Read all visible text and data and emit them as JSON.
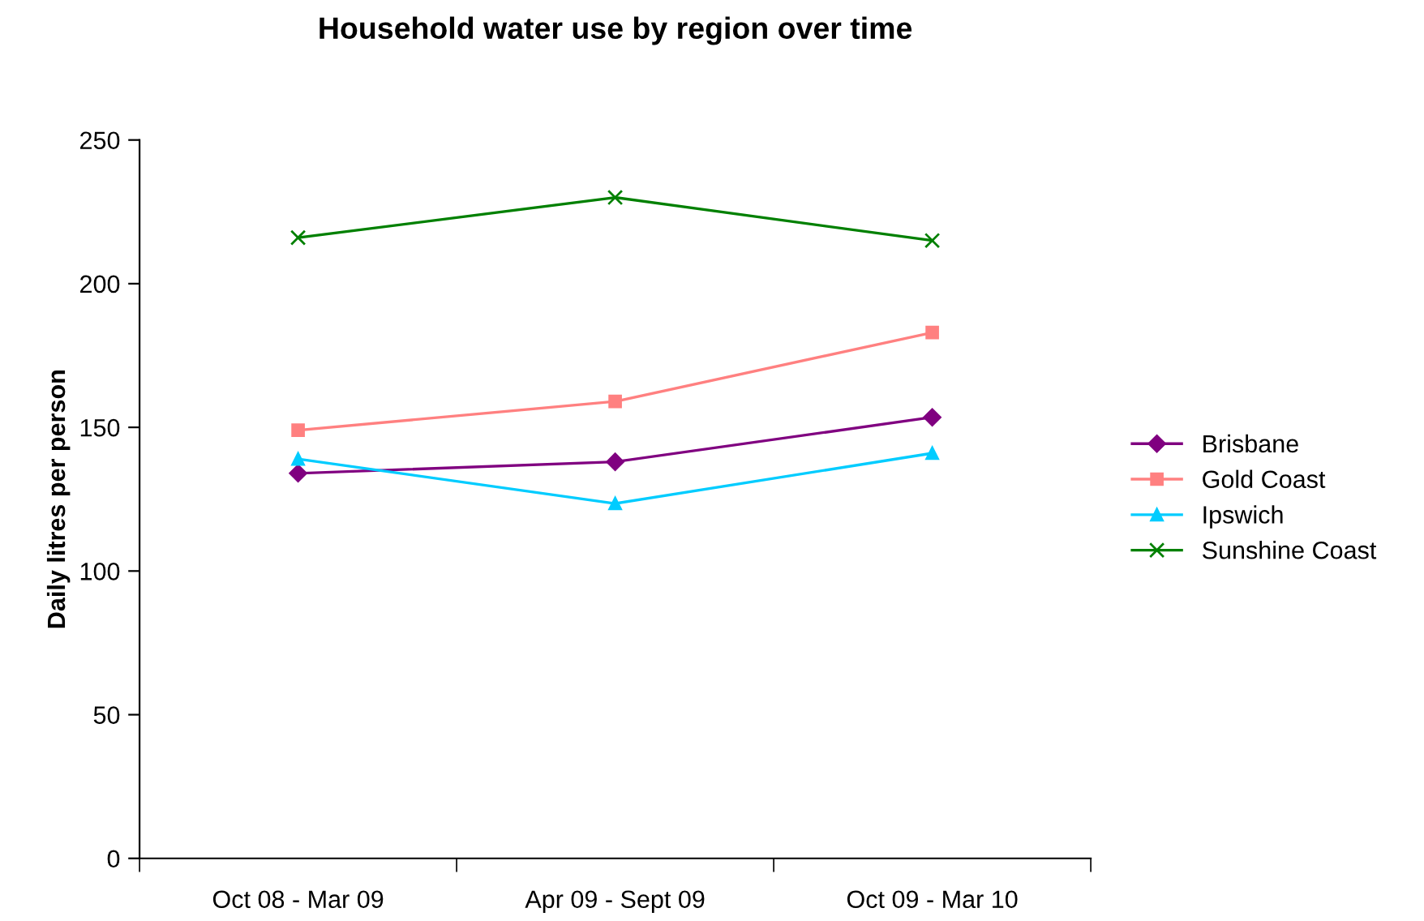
{
  "chart_data": {
    "type": "line",
    "title": "Household water use by region over time",
    "ylabel": "Daily litres per person",
    "categories": [
      "Oct 08 - Mar 09",
      "Apr 09 - Sept 09",
      "Oct 09 - Mar 10"
    ],
    "series": [
      {
        "name": "Brisbane",
        "color": "#800080",
        "marker": "diamond",
        "values": [
          134,
          138,
          153.5
        ]
      },
      {
        "name": "Gold Coast",
        "color": "#ff8080",
        "marker": "square",
        "values": [
          149,
          159,
          183
        ]
      },
      {
        "name": "Ipswich",
        "color": "#00ccff",
        "marker": "triangle",
        "values": [
          139,
          123.5,
          141
        ]
      },
      {
        "name": "Sunshine Coast",
        "color": "#008000",
        "marker": "cross",
        "values": [
          216,
          230,
          215
        ]
      }
    ],
    "ylim": [
      0,
      250
    ],
    "yticks": [
      0,
      50,
      100,
      150,
      200,
      250
    ],
    "grid": false,
    "legend": "right"
  }
}
